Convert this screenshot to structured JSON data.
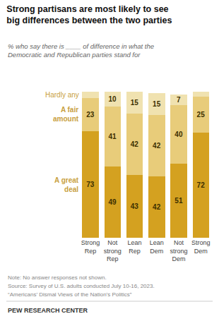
{
  "chart_data": {
    "type": "bar",
    "stacked": true,
    "title": "Strong partisans are most likely to see\nbig differences between the two parties",
    "subtitle": "% who say there is ____ of difference in what the\nDemocratic and Republican parties stand for",
    "categories": [
      "Strong\nRep",
      "Not\nstrong\nRep",
      "Lean\nRep",
      "Lean\nDem",
      "Not\nstrong\nDem",
      "Strong\nDem"
    ],
    "series": [
      {
        "name": "A great\ndeal",
        "color": "#D4A120",
        "values": [
          73,
          49,
          43,
          42,
          51,
          72
        ]
      },
      {
        "name": "A fair\namount",
        "color": "#E8CC7A",
        "values": [
          23,
          41,
          42,
          42,
          40,
          25
        ]
      },
      {
        "name": "Hardly any",
        "color": "#F0E2B0",
        "values": [
          4,
          10,
          15,
          15,
          7,
          3
        ],
        "value_labels": [
          null,
          "10",
          "15",
          "15",
          "7",
          null
        ]
      }
    ],
    "ylim": [
      0,
      105
    ],
    "grid": false,
    "data_labels": true,
    "tick_labels": "x",
    "annotations": [
      "Note: No answer responses not shown.",
      "Source: Survey of U.S. adults conducted July 10-16, 2023.",
      "“Americans’ Dismal Views of the Nation’s Politics”",
      "PEW RESEARCH CENTER"
    ]
  }
}
